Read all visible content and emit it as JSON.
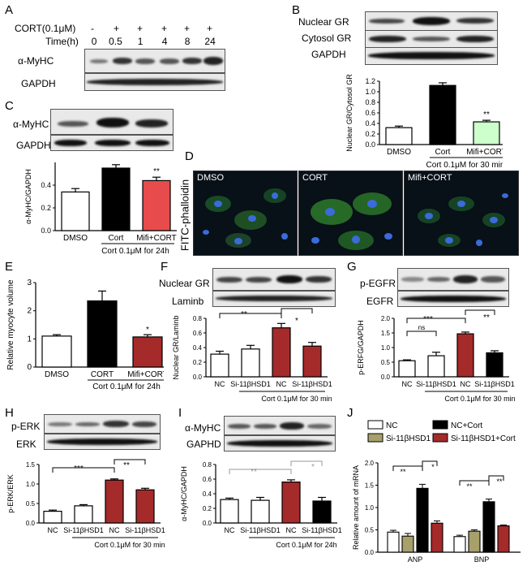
{
  "panels": {
    "A": {
      "letter": "A",
      "cort_label": "CORT(0.1μM)",
      "time_label": "Time(h)",
      "cort_signs": [
        "-",
        "+",
        "+",
        "+",
        "+",
        "+"
      ],
      "times": [
        "0",
        "0.5",
        "1",
        "4",
        "8",
        "24"
      ],
      "rows": [
        "α-MyHC",
        "GAPDH"
      ]
    },
    "B": {
      "letter": "B",
      "rows": [
        "Nuclear GR",
        "Cytosol GR",
        "GAPDH"
      ],
      "ylabel": "Nuclear GR/Cytosol GR",
      "footnote": "Cort 0.1μM for 30 min",
      "sig": [
        "**"
      ]
    },
    "C": {
      "letter": "C",
      "rows": [
        "α-MyHC",
        "GAPDH"
      ],
      "ylabel": "α-MyHC/GAPDH",
      "footnote": "Cort 0.1μM for 24h",
      "sig": [
        "**"
      ]
    },
    "D": {
      "letter": "D",
      "side_label": "FITC-phalloidin",
      "images": [
        "DMSO",
        "CORT",
        "Mifi+CORT"
      ]
    },
    "E": {
      "letter": "E",
      "ylabel": "Relative myocyte volume",
      "footnote": "Cort 0.1μM for 24h",
      "sig": [
        "*"
      ]
    },
    "F": {
      "letter": "F",
      "rows": [
        "Nuclear GR",
        "Laminb"
      ],
      "ylabel": "Nuclear GR/Laminb",
      "footnote": "Cort 0.1μM for 30 min",
      "sig": [
        "**",
        "*"
      ]
    },
    "G": {
      "letter": "G",
      "rows": [
        "p-EGFR",
        "EGFR"
      ],
      "ylabel": "p-ERFG/GAPDH",
      "footnote": "Cort 0.1μM for 30 min",
      "sig": [
        "ns",
        "***",
        "**"
      ]
    },
    "H": {
      "letter": "H",
      "rows": [
        "p-ERK",
        "ERK"
      ],
      "ylabel": "p-ERK/ERK",
      "footnote": "Cort 0.1μM for 30 min",
      "sig": [
        "***",
        "**"
      ]
    },
    "I": {
      "letter": "I",
      "rows": [
        "α-MyHC",
        "GAPHD"
      ],
      "ylabel": "α-MyHC/GAPDH",
      "footnote": "Cort 0.1μM for 24h",
      "sig": [
        "**",
        "*"
      ]
    },
    "J": {
      "letter": "J",
      "ylabel": "Relative amount of  mRNA",
      "legend": [
        "NC",
        "NC+Cort",
        "Si-11βHSD1",
        "Si-11βHSD1+Cort"
      ],
      "sig": [
        "**",
        "*",
        "**",
        "**"
      ]
    }
  },
  "colors": {
    "black": "#000000",
    "red": "#a52a2a",
    "pink": "#e84b4b",
    "olive": "#a8a06a",
    "white": "#ffffff",
    "gray_sig": "#999999"
  },
  "chart_data": [
    {
      "id": "B",
      "type": "bar",
      "categories": [
        "DMSO",
        "Cort",
        "Mifi+CORT"
      ],
      "values": [
        0.32,
        1.12,
        0.43
      ],
      "errors": [
        0.03,
        0.05,
        0.03
      ],
      "fills": [
        "#ffffff",
        "#000000",
        "#ccffcc"
      ],
      "ylim": [
        0,
        1.2
      ],
      "yticks": [
        0.0,
        0.2,
        0.4,
        0.6,
        0.8,
        1.0,
        1.2
      ],
      "ytick_labels": [
        "0.0",
        "0.2",
        "0.4",
        "0.6",
        "0.8",
        "1.0",
        "1.2"
      ],
      "ylabel": "Nuclear GR/Cytosol GR"
    },
    {
      "id": "C",
      "type": "bar",
      "categories": [
        "DMSO",
        "Cort",
        "Mifi+CORT"
      ],
      "values": [
        0.34,
        0.55,
        0.44
      ],
      "errors": [
        0.03,
        0.03,
        0.03
      ],
      "fills": [
        "#ffffff",
        "#000000",
        "#e84b4b"
      ],
      "ylim": [
        0,
        0.6
      ],
      "yticks": [
        0.0,
        0.2,
        0.4
      ],
      "ytick_labels": [
        "0.0",
        "0.2",
        "0.4"
      ],
      "ylabel": "α-MyHC/GAPDH"
    },
    {
      "id": "E",
      "type": "bar",
      "categories": [
        "DMSO",
        "CORT",
        "Mifi+CORT"
      ],
      "values": [
        1.1,
        2.35,
        1.07
      ],
      "errors": [
        0.05,
        0.35,
        0.08
      ],
      "fills": [
        "#ffffff",
        "#000000",
        "#a52a2a"
      ],
      "ylim": [
        0,
        3
      ],
      "yticks": [
        0,
        1,
        2,
        3
      ],
      "ytick_labels": [
        "0",
        "1",
        "2",
        "3"
      ],
      "ylabel": "Relative myocyte volume"
    },
    {
      "id": "F",
      "type": "bar",
      "categories": [
        "NC",
        "Si-11βHSD1",
        "NC",
        "Si-11βHSD1"
      ],
      "values": [
        0.31,
        0.38,
        0.67,
        0.42
      ],
      "errors": [
        0.04,
        0.05,
        0.06,
        0.05
      ],
      "fills": [
        "#ffffff",
        "#ffffff",
        "#a52a2a",
        "#a52a2a"
      ],
      "ylim": [
        0,
        0.8
      ],
      "yticks": [
        0.0,
        0.2,
        0.4,
        0.6,
        0.8
      ],
      "ytick_labels": [
        "0.0",
        "0.2",
        "0.4",
        "0.6",
        "0.8"
      ],
      "ylabel": "Nuclear GR/Laminb"
    },
    {
      "id": "G",
      "type": "bar",
      "categories": [
        "NC",
        "Si-11βHSD1",
        "NC",
        "Si-11βHSD1"
      ],
      "values": [
        0.55,
        0.72,
        1.47,
        0.82
      ],
      "errors": [
        0.03,
        0.12,
        0.06,
        0.07
      ],
      "fills": [
        "#ffffff",
        "#ffffff",
        "#a52a2a",
        "#000000"
      ],
      "ylim": [
        0,
        2.0
      ],
      "yticks": [
        0.0,
        0.5,
        1.0,
        1.5,
        2.0
      ],
      "ytick_labels": [
        "0.0",
        "0.5",
        "1.0",
        "1.5",
        "2.0"
      ],
      "ylabel": "p-ERFG/GAPDH"
    },
    {
      "id": "H",
      "type": "bar",
      "categories": [
        "NC",
        "Si-11βHSD1",
        "NC",
        "Si-11βHSD1"
      ],
      "values": [
        0.3,
        0.44,
        1.1,
        0.85
      ],
      "errors": [
        0.03,
        0.03,
        0.03,
        0.04
      ],
      "fills": [
        "#ffffff",
        "#ffffff",
        "#a52a2a",
        "#a52a2a"
      ],
      "ylim": [
        0,
        1.5
      ],
      "yticks": [
        0.0,
        0.5,
        1.0,
        1.5
      ],
      "ytick_labels": [
        "0.0",
        "0.5",
        "1.0",
        "1.5"
      ],
      "ylabel": "p-ERK/ERK"
    },
    {
      "id": "I",
      "type": "bar",
      "categories": [
        "NC",
        "Si-11βHSD1",
        "NC",
        "Si-11βHSD1"
      ],
      "values": [
        0.32,
        0.31,
        0.56,
        0.3
      ],
      "errors": [
        0.02,
        0.04,
        0.03,
        0.05
      ],
      "fills": [
        "#ffffff",
        "#ffffff",
        "#a52a2a",
        "#000000"
      ],
      "ylim": [
        0,
        0.8
      ],
      "yticks": [
        0.0,
        0.2,
        0.4,
        0.6,
        0.8
      ],
      "ytick_labels": [
        "0.0",
        "0.2",
        "0.4",
        "0.6",
        "0.8"
      ],
      "ylabel": "α-MyHC/GAPDH"
    },
    {
      "id": "J",
      "type": "bar",
      "categories": [
        "ANP",
        "BNP"
      ],
      "series": [
        {
          "name": "NC",
          "values": [
            0.45,
            0.35
          ],
          "errors": [
            0.04,
            0.03
          ],
          "fill": "#ffffff"
        },
        {
          "name": "Si-11βHSD1",
          "values": [
            0.36,
            0.47
          ],
          "errors": [
            0.06,
            0.03
          ],
          "fill": "#a8a06a"
        },
        {
          "name": "NC+Cort",
          "values": [
            1.43,
            1.13
          ],
          "errors": [
            0.09,
            0.06
          ],
          "fill": "#000000"
        },
        {
          "name": "Si-11βHSD1+Cort",
          "values": [
            0.65,
            0.59
          ],
          "errors": [
            0.05,
            0.02
          ],
          "fill": "#a52a2a"
        }
      ],
      "ylim": [
        0,
        2.0
      ],
      "yticks": [
        0.0,
        0.5,
        1.0,
        1.5,
        2.0
      ],
      "ytick_labels": [
        "0.0",
        "0.5",
        "1.0",
        "1.5",
        "2.0"
      ],
      "ylabel": "Relative amount of  mRNA"
    }
  ]
}
